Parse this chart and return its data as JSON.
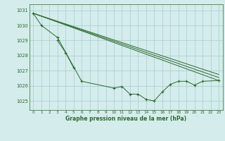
{
  "line1_x": [
    0,
    1,
    3,
    6,
    10,
    11,
    12,
    13,
    14,
    15,
    16,
    17,
    18,
    19,
    20,
    21,
    23
  ],
  "line1_y": [
    1030.8,
    1030.0,
    1029.2,
    1026.3,
    1025.85,
    1025.95,
    1025.45,
    1025.45,
    1025.1,
    1025.0,
    1025.6,
    1026.1,
    1026.3,
    1026.3,
    1026.05,
    1026.3,
    1026.35
  ],
  "line2_x": [
    3,
    4,
    5
  ],
  "line2_y": [
    1029.0,
    1028.2,
    1027.2
  ],
  "trend_lines": [
    {
      "x": [
        0,
        23
      ],
      "y": [
        1030.8,
        1026.35
      ]
    },
    {
      "x": [
        0,
        23
      ],
      "y": [
        1030.8,
        1026.55
      ]
    },
    {
      "x": [
        0,
        23
      ],
      "y": [
        1030.8,
        1026.75
      ]
    }
  ],
  "bg_color": "#d4ecec",
  "line_color": "#2d6a2d",
  "grid_color": "#a8cccc",
  "text_color": "#2d6a2d",
  "xlabel": "Graphe pression niveau de la mer (hPa)",
  "ylim": [
    1024.4,
    1031.4
  ],
  "xlim": [
    -0.5,
    23.5
  ],
  "yticks": [
    1025,
    1026,
    1027,
    1028,
    1029,
    1030,
    1031
  ],
  "xticks": [
    0,
    1,
    2,
    3,
    4,
    5,
    6,
    7,
    8,
    9,
    10,
    11,
    12,
    13,
    14,
    15,
    16,
    17,
    18,
    19,
    20,
    21,
    22,
    23
  ]
}
